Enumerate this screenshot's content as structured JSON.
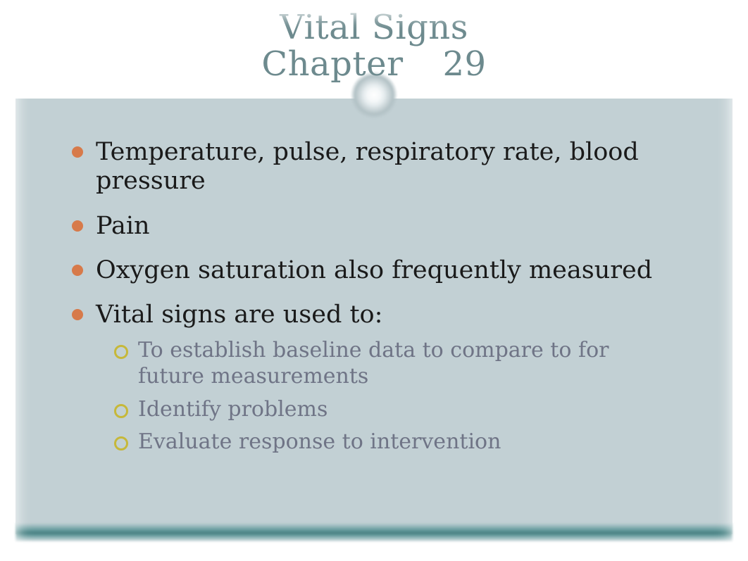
{
  "title": {
    "line1": "Vital Signs",
    "line2_a": "Chapter",
    "line2_b": "29",
    "color": "#6d8a8e",
    "fontsize": 48
  },
  "background": {
    "page": "#ffffff",
    "body_panel": "#c2d0d4",
    "bottom_bar_gradient": [
      "#c2d0d4",
      "#6ea1a3",
      "#3e7a7c",
      "#6ea1a3",
      "#c2d0d4"
    ]
  },
  "bullets": {
    "level1_color": "#1a1a1a",
    "level1_fontsize": 35,
    "level1_marker_color": "#d77a4a",
    "level2_color": "#6f7486",
    "level2_fontsize": 30,
    "level2_marker_border": "#c6b83a",
    "items": [
      {
        "text": "Temperature, pulse, respiratory rate, blood pressure"
      },
      {
        "text": "Pain"
      },
      {
        "text": "Oxygen saturation also frequently measured"
      },
      {
        "text": "Vital signs are used to:",
        "children": [
          "To establish baseline data to compare to for future measurements",
          "Identify problems",
          "Evaluate response to intervention"
        ]
      }
    ]
  }
}
